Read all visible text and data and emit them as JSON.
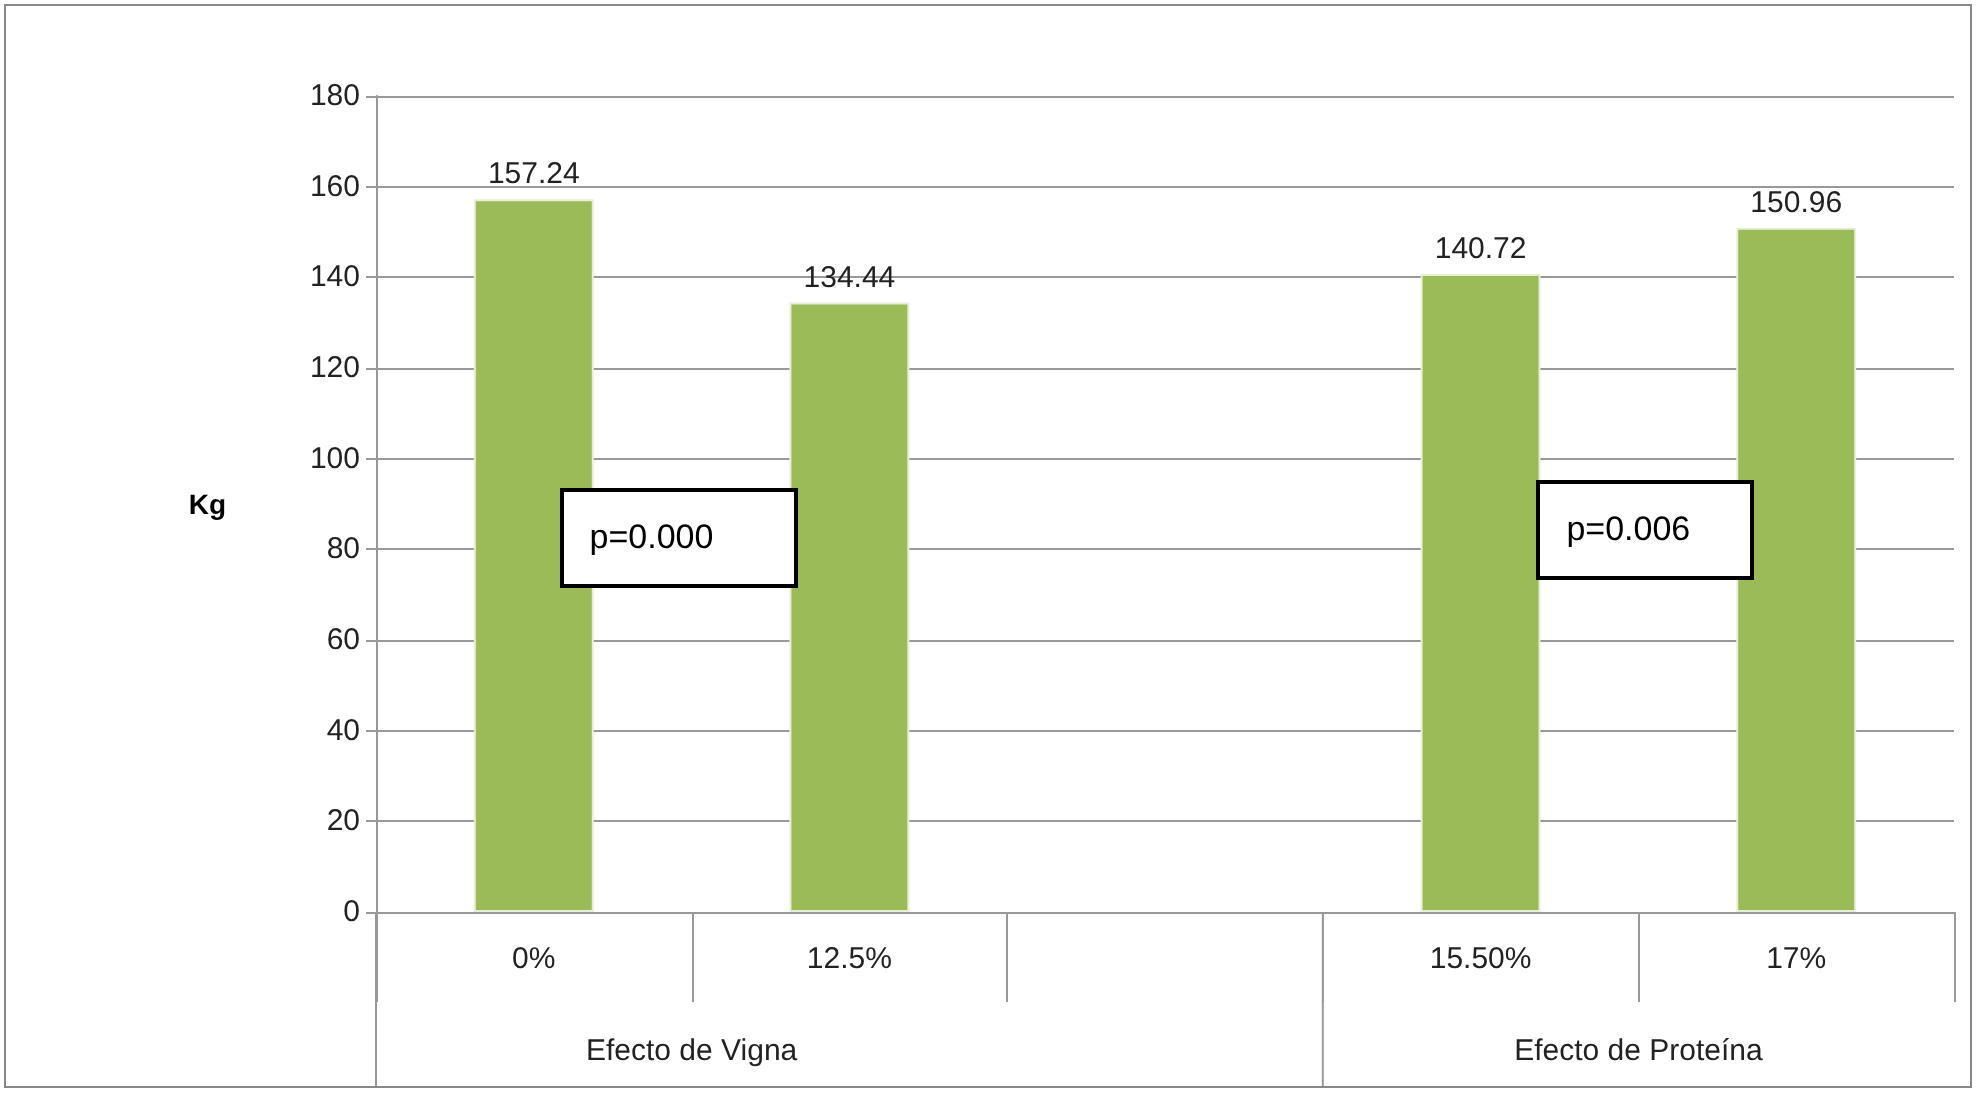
{
  "chart_data": {
    "type": "bar",
    "ylabel": "Kg",
    "categories": [
      "0%",
      "12.5%",
      null,
      "15.50%",
      "17%"
    ],
    "values": [
      157.24,
      134.44,
      null,
      140.72,
      150.96
    ],
    "color": "#9bbb59",
    "ylim": [
      0,
      180
    ],
    "yticks": [
      0,
      20,
      40,
      60,
      80,
      100,
      120,
      140,
      160,
      180
    ],
    "grid": "y",
    "data_labels": true,
    "annotations": [
      "p=0.000",
      "p=0.006",
      "Efecto de Vigna",
      "Efecto de Proteína"
    ]
  }
}
